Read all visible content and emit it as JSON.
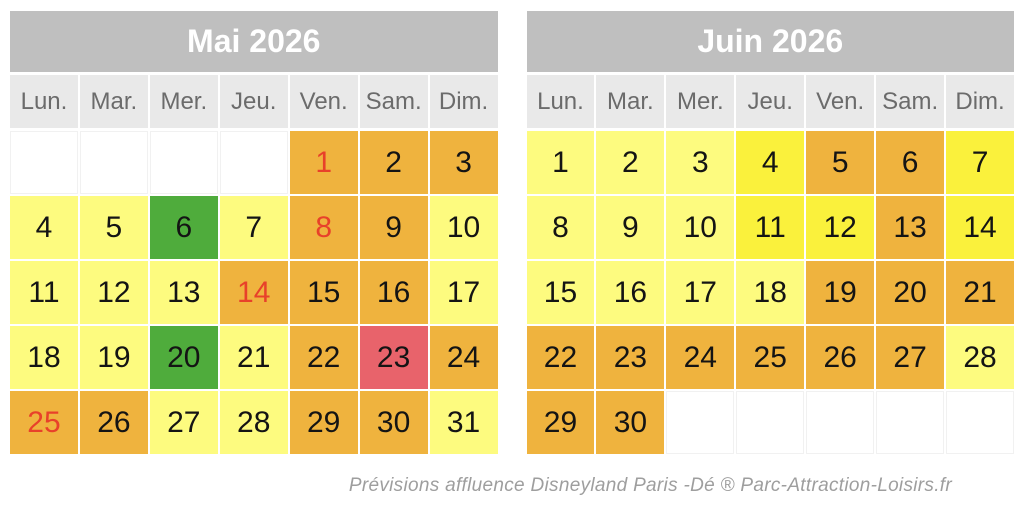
{
  "footer": {
    "text": "Prévisions affluence Disneyland Paris -Dé ® Parc-Attraction-Loisirs.fr"
  },
  "colors": {
    "title_bg": "#BFBFBF",
    "weekday_bg": "#E9E9E9",
    "weekday_text": "#6B6B6B",
    "holiday_text": "#E8412A",
    "level_low": "#FDFB7F",
    "level_medium": "#FAF13C",
    "level_high": "#EFB33E",
    "level_peak": "#E8636B",
    "level_great": "#4FAC3C",
    "level_empty": "#FFFFFF"
  },
  "calendars": [
    {
      "title": "Mai 2026",
      "weekdays": [
        "Lun.",
        "Mar.",
        "Mer.",
        "Jeu.",
        "Ven.",
        "Sam.",
        "Dim."
      ],
      "weeks": [
        [
          {
            "day": "",
            "level": "empty"
          },
          {
            "day": "",
            "level": "empty"
          },
          {
            "day": "",
            "level": "empty"
          },
          {
            "day": "",
            "level": "empty"
          },
          {
            "day": "1",
            "level": "high",
            "holiday": true
          },
          {
            "day": "2",
            "level": "high"
          },
          {
            "day": "3",
            "level": "high"
          }
        ],
        [
          {
            "day": "4",
            "level": "low"
          },
          {
            "day": "5",
            "level": "low"
          },
          {
            "day": "6",
            "level": "great"
          },
          {
            "day": "7",
            "level": "low"
          },
          {
            "day": "8",
            "level": "high",
            "holiday": true
          },
          {
            "day": "9",
            "level": "high"
          },
          {
            "day": "10",
            "level": "low"
          }
        ],
        [
          {
            "day": "11",
            "level": "low"
          },
          {
            "day": "12",
            "level": "low"
          },
          {
            "day": "13",
            "level": "low"
          },
          {
            "day": "14",
            "level": "high",
            "holiday": true
          },
          {
            "day": "15",
            "level": "high"
          },
          {
            "day": "16",
            "level": "high"
          },
          {
            "day": "17",
            "level": "low"
          }
        ],
        [
          {
            "day": "18",
            "level": "low"
          },
          {
            "day": "19",
            "level": "low"
          },
          {
            "day": "20",
            "level": "great"
          },
          {
            "day": "21",
            "level": "low"
          },
          {
            "day": "22",
            "level": "high"
          },
          {
            "day": "23",
            "level": "peak"
          },
          {
            "day": "24",
            "level": "high"
          }
        ],
        [
          {
            "day": "25",
            "level": "high",
            "holiday": true
          },
          {
            "day": "26",
            "level": "high"
          },
          {
            "day": "27",
            "level": "low"
          },
          {
            "day": "28",
            "level": "low"
          },
          {
            "day": "29",
            "level": "high"
          },
          {
            "day": "30",
            "level": "high"
          },
          {
            "day": "31",
            "level": "low"
          }
        ]
      ]
    },
    {
      "title": "Juin 2026",
      "weekdays": [
        "Lun.",
        "Mar.",
        "Mer.",
        "Jeu.",
        "Ven.",
        "Sam.",
        "Dim."
      ],
      "weeks": [
        [
          {
            "day": "1",
            "level": "low"
          },
          {
            "day": "2",
            "level": "low"
          },
          {
            "day": "3",
            "level": "low"
          },
          {
            "day": "4",
            "level": "medium"
          },
          {
            "day": "5",
            "level": "high"
          },
          {
            "day": "6",
            "level": "high"
          },
          {
            "day": "7",
            "level": "medium"
          }
        ],
        [
          {
            "day": "8",
            "level": "low"
          },
          {
            "day": "9",
            "level": "low"
          },
          {
            "day": "10",
            "level": "low"
          },
          {
            "day": "11",
            "level": "medium"
          },
          {
            "day": "12",
            "level": "medium"
          },
          {
            "day": "13",
            "level": "high"
          },
          {
            "day": "14",
            "level": "medium"
          }
        ],
        [
          {
            "day": "15",
            "level": "low"
          },
          {
            "day": "16",
            "level": "low"
          },
          {
            "day": "17",
            "level": "low"
          },
          {
            "day": "18",
            "level": "low"
          },
          {
            "day": "19",
            "level": "high"
          },
          {
            "day": "20",
            "level": "high"
          },
          {
            "day": "21",
            "level": "high"
          }
        ],
        [
          {
            "day": "22",
            "level": "high"
          },
          {
            "day": "23",
            "level": "high"
          },
          {
            "day": "24",
            "level": "high"
          },
          {
            "day": "25",
            "level": "high"
          },
          {
            "day": "26",
            "level": "high"
          },
          {
            "day": "27",
            "level": "high"
          },
          {
            "day": "28",
            "level": "low"
          }
        ],
        [
          {
            "day": "29",
            "level": "high"
          },
          {
            "day": "30",
            "level": "high"
          },
          {
            "day": "",
            "level": "empty"
          },
          {
            "day": "",
            "level": "empty"
          },
          {
            "day": "",
            "level": "empty"
          },
          {
            "day": "",
            "level": "empty"
          },
          {
            "day": "",
            "level": "empty"
          }
        ]
      ]
    }
  ],
  "chart_data": [
    {
      "type": "heatmap",
      "title": "Mai 2026",
      "x_labels": [
        "Lun.",
        "Mar.",
        "Mer.",
        "Jeu.",
        "Ven.",
        "Sam.",
        "Dim."
      ],
      "legend_position": "none",
      "level_colors": {
        "low": "#FDFB7F",
        "medium": "#FAF13C",
        "high": "#EFB33E",
        "peak": "#E8636B",
        "great": "#4FAC3C",
        "empty": "#FFFFFF"
      },
      "holiday_number_color": "#E8412A",
      "holiday_days": [
        1,
        8,
        14,
        25
      ],
      "rows": [
        [
          "empty",
          "empty",
          "empty",
          "empty",
          "1:high",
          "2:high",
          "3:high"
        ],
        [
          "4:low",
          "5:low",
          "6:great",
          "7:low",
          "8:high",
          "9:high",
          "10:low"
        ],
        [
          "11:low",
          "12:low",
          "13:low",
          "14:high",
          "15:high",
          "16:high",
          "17:low"
        ],
        [
          "18:low",
          "19:low",
          "20:great",
          "21:low",
          "22:high",
          "23:peak",
          "24:high"
        ],
        [
          "25:high",
          "26:high",
          "27:low",
          "28:low",
          "29:high",
          "30:high",
          "31:low"
        ]
      ]
    },
    {
      "type": "heatmap",
      "title": "Juin 2026",
      "x_labels": [
        "Lun.",
        "Mar.",
        "Mer.",
        "Jeu.",
        "Ven.",
        "Sam.",
        "Dim."
      ],
      "legend_position": "none",
      "level_colors": {
        "low": "#FDFB7F",
        "medium": "#FAF13C",
        "high": "#EFB33E",
        "peak": "#E8636B",
        "great": "#4FAC3C",
        "empty": "#FFFFFF"
      },
      "holiday_number_color": "#E8412A",
      "holiday_days": [],
      "rows": [
        [
          "1:low",
          "2:low",
          "3:low",
          "4:medium",
          "5:high",
          "6:high",
          "7:medium"
        ],
        [
          "8:low",
          "9:low",
          "10:low",
          "11:medium",
          "12:medium",
          "13:high",
          "14:medium"
        ],
        [
          "15:low",
          "16:low",
          "17:low",
          "18:low",
          "19:high",
          "20:high",
          "21:high"
        ],
        [
          "22:high",
          "23:high",
          "24:high",
          "25:high",
          "26:high",
          "27:high",
          "28:low"
        ],
        [
          "29:high",
          "30:high",
          "empty",
          "empty",
          "empty",
          "empty",
          "empty"
        ]
      ]
    }
  ]
}
